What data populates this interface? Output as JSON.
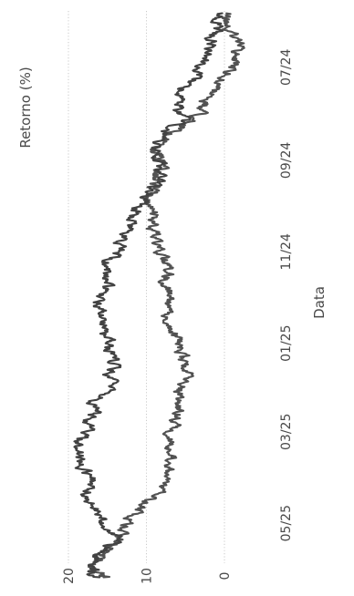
{
  "chart_data": {
    "type": "line",
    "title": "",
    "xlabel": "Data",
    "ylabel": "Retorno (%)",
    "x_range": [
      "2024-05-22",
      "2025-06-10"
    ],
    "ylim": [
      -2,
      22
    ],
    "x_ticks": [
      {
        "label": "07/24",
        "date": "2024-07-01"
      },
      {
        "label": "09/24",
        "date": "2024-09-01"
      },
      {
        "label": "11/24",
        "date": "2024-11-01"
      },
      {
        "label": "01/25",
        "date": "2025-01-01"
      },
      {
        "label": "03/25",
        "date": "2025-03-01"
      },
      {
        "label": "05/25",
        "date": "2025-05-01"
      }
    ],
    "y_ticks": [
      0,
      10,
      20
    ],
    "grid": {
      "y": true,
      "x": false
    },
    "legend": "none",
    "series": [
      {
        "x": [
          "2024-05-26",
          "2024-06-05",
          "2024-06-15",
          "2024-06-25",
          "2024-07-05",
          "2024-07-15",
          "2024-07-25",
          "2024-08-04",
          "2024-08-14",
          "2024-08-24",
          "2024-09-03",
          "2024-09-13",
          "2024-09-23",
          "2024-10-03",
          "2024-10-13",
          "2024-10-23",
          "2024-11-02",
          "2024-11-12",
          "2024-11-22",
          "2024-12-02",
          "2024-12-12",
          "2024-12-22",
          "2025-01-01",
          "2025-01-11",
          "2025-01-21",
          "2025-01-31",
          "2025-02-10",
          "2025-02-20",
          "2025-03-02",
          "2025-03-12",
          "2025-03-22",
          "2025-04-01",
          "2025-04-11",
          "2025-04-21",
          "2025-05-01",
          "2025-05-11",
          "2025-05-21",
          "2025-05-31",
          "2025-06-06"
        ],
        "values": [
          0.3,
          0.8,
          1.5,
          2.5,
          3.8,
          5.2,
          6.0,
          5.5,
          7.5,
          9.0,
          8.5,
          8.2,
          10.0,
          11.0,
          12.0,
          13.0,
          14.0,
          15.0,
          15.0,
          16.0,
          15.5,
          16.0,
          15.0,
          14.0,
          14.5,
          15.0,
          16.5,
          17.0,
          18.0,
          19.0,
          18.5,
          17.0,
          17.5,
          16.5,
          15.0,
          14.0,
          16.0,
          17.0,
          16.0
        ],
        "color": "#333333"
      },
      {
        "x": [
          "2024-05-26",
          "2024-06-05",
          "2024-06-15",
          "2024-06-25",
          "2024-07-05",
          "2024-07-15",
          "2024-07-25",
          "2024-08-04",
          "2024-08-14",
          "2024-08-24",
          "2024-09-03",
          "2024-09-13",
          "2024-09-23",
          "2024-10-03",
          "2024-10-13",
          "2024-10-23",
          "2024-11-02",
          "2024-11-12",
          "2024-11-22",
          "2024-12-02",
          "2024-12-12",
          "2024-12-22",
          "2025-01-01",
          "2025-01-11",
          "2025-01-21",
          "2025-01-31",
          "2025-02-10",
          "2025-02-20",
          "2025-03-02",
          "2025-03-12",
          "2025-03-22",
          "2025-04-01",
          "2025-04-11",
          "2025-04-21",
          "2025-05-01",
          "2025-05-11",
          "2025-05-21",
          "2025-05-31",
          "2025-06-06"
        ],
        "values": [
          0.0,
          -0.5,
          -1.5,
          -1.2,
          -0.5,
          1.0,
          2.5,
          4.0,
          6.5,
          9.0,
          8.0,
          9.0,
          9.5,
          9.0,
          9.5,
          9.0,
          8.5,
          7.5,
          7.5,
          7.0,
          8.0,
          6.5,
          6.0,
          5.5,
          5.0,
          5.5,
          6.0,
          6.0,
          6.5,
          7.0,
          6.5,
          7.5,
          8.5,
          11.0,
          12.5,
          13.5,
          15.0,
          17.0,
          15.5
        ],
        "color": "#444444"
      }
    ]
  }
}
